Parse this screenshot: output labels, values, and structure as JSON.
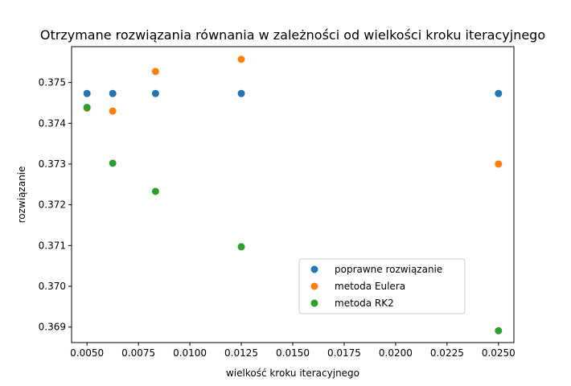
{
  "chart_data": {
    "type": "scatter",
    "title": "Otrzymane rozwiązania równania w zależności od wielkości kroku iteracyjnego",
    "xlabel": "wielkość kroku iteracyjnego",
    "ylabel": "rozwiązanie",
    "xlim": [
      0.00425,
      0.02575
    ],
    "ylim": [
      0.36862,
      0.37588
    ],
    "xticks": [
      0.005,
      0.0075,
      0.01,
      0.0125,
      0.015,
      0.0175,
      0.02,
      0.0225,
      0.025
    ],
    "xtick_labels": [
      "0.0050",
      "0.0075",
      "0.0100",
      "0.0125",
      "0.0150",
      "0.0175",
      "0.0200",
      "0.0225",
      "0.0250"
    ],
    "yticks": [
      0.369,
      0.37,
      0.371,
      0.372,
      0.373,
      0.374,
      0.375
    ],
    "ytick_labels": [
      "0.369",
      "0.370",
      "0.371",
      "0.372",
      "0.373",
      "0.374",
      "0.375"
    ],
    "legend_position": "lower-right",
    "series": [
      {
        "name": "poprawne rozwiązanie",
        "color": "#1f77b4",
        "x": [
          0.005,
          0.00625,
          0.00833,
          0.0125,
          0.025
        ],
        "y": [
          0.37473,
          0.37473,
          0.37473,
          0.37473,
          0.37473
        ]
      },
      {
        "name": "metoda Eulera",
        "color": "#ff7f0e",
        "x": [
          0.005,
          0.00625,
          0.00833,
          0.0125,
          0.025
        ],
        "y": [
          0.37437,
          0.3743,
          0.37527,
          0.37557,
          0.373
        ]
      },
      {
        "name": "metoda RK2",
        "color": "#2ca02c",
        "x": [
          0.005,
          0.00625,
          0.00833,
          0.0125,
          0.025
        ],
        "y": [
          0.37439,
          0.37302,
          0.37233,
          0.37097,
          0.36891
        ]
      }
    ]
  }
}
